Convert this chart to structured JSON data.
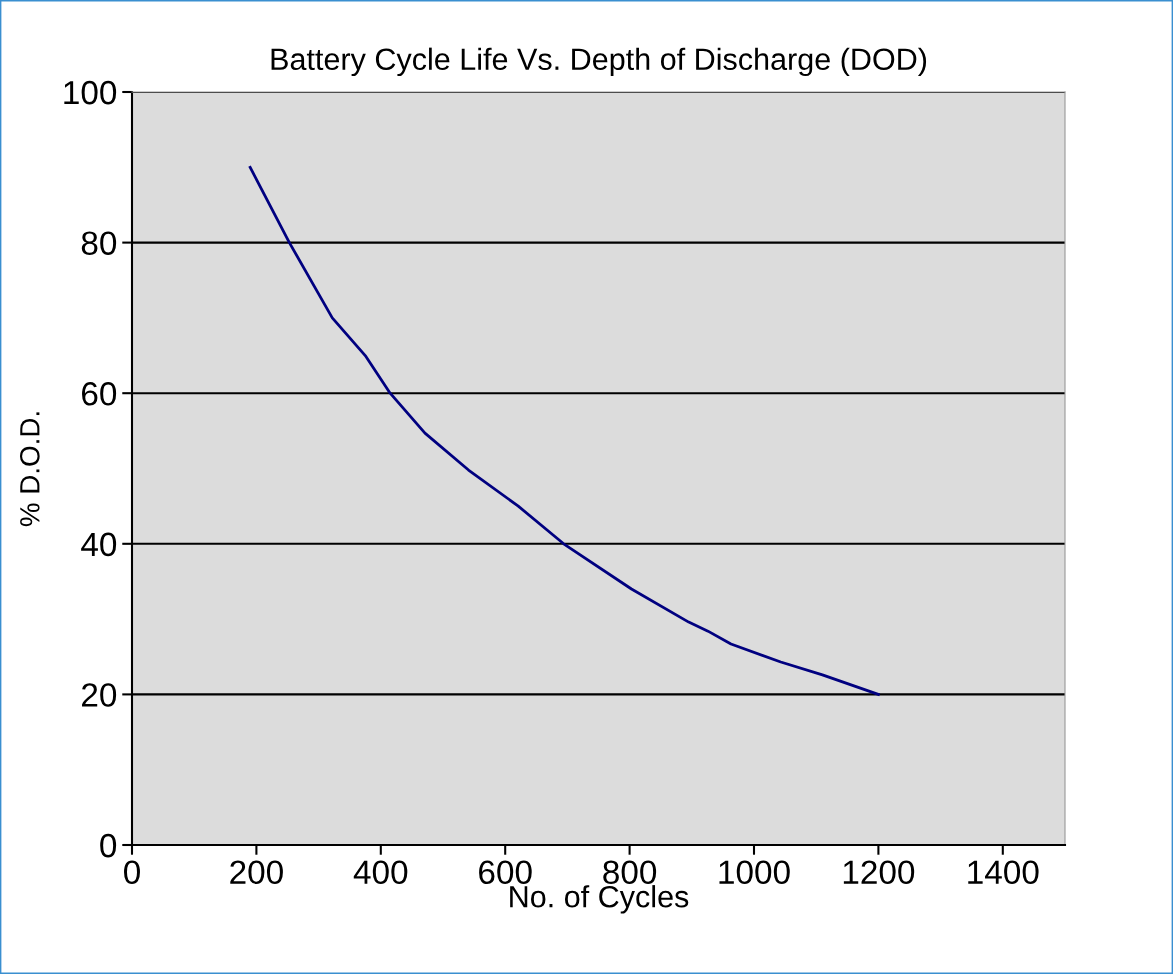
{
  "chart_data": {
    "type": "line",
    "title": "Battery Cycle Life Vs. Depth of Discharge (DOD)",
    "xlabel": "No. of Cycles",
    "ylabel": "% D.O.D.",
    "series": [
      {
        "color": "#000080",
        "x": [
          190,
          253,
          322,
          375,
          415,
          471,
          541,
          621,
          694,
          803,
          895,
          926,
          963,
          1043,
          1110,
          1200
        ],
        "values": [
          90,
          80,
          70,
          65,
          60,
          54.7,
          49.8,
          45,
          40,
          34,
          29.6,
          28.4,
          26.7,
          24.3,
          22.6,
          20
        ]
      }
    ],
    "xlim": [
      0,
      1500
    ],
    "xticks": [
      0,
      200,
      400,
      600,
      800,
      1000,
      1200,
      1400
    ],
    "ylim": [
      0,
      100
    ],
    "yticks": [
      0,
      20,
      40,
      60,
      80,
      100
    ],
    "grid": "y",
    "marker": "none",
    "line_style": "solid"
  }
}
